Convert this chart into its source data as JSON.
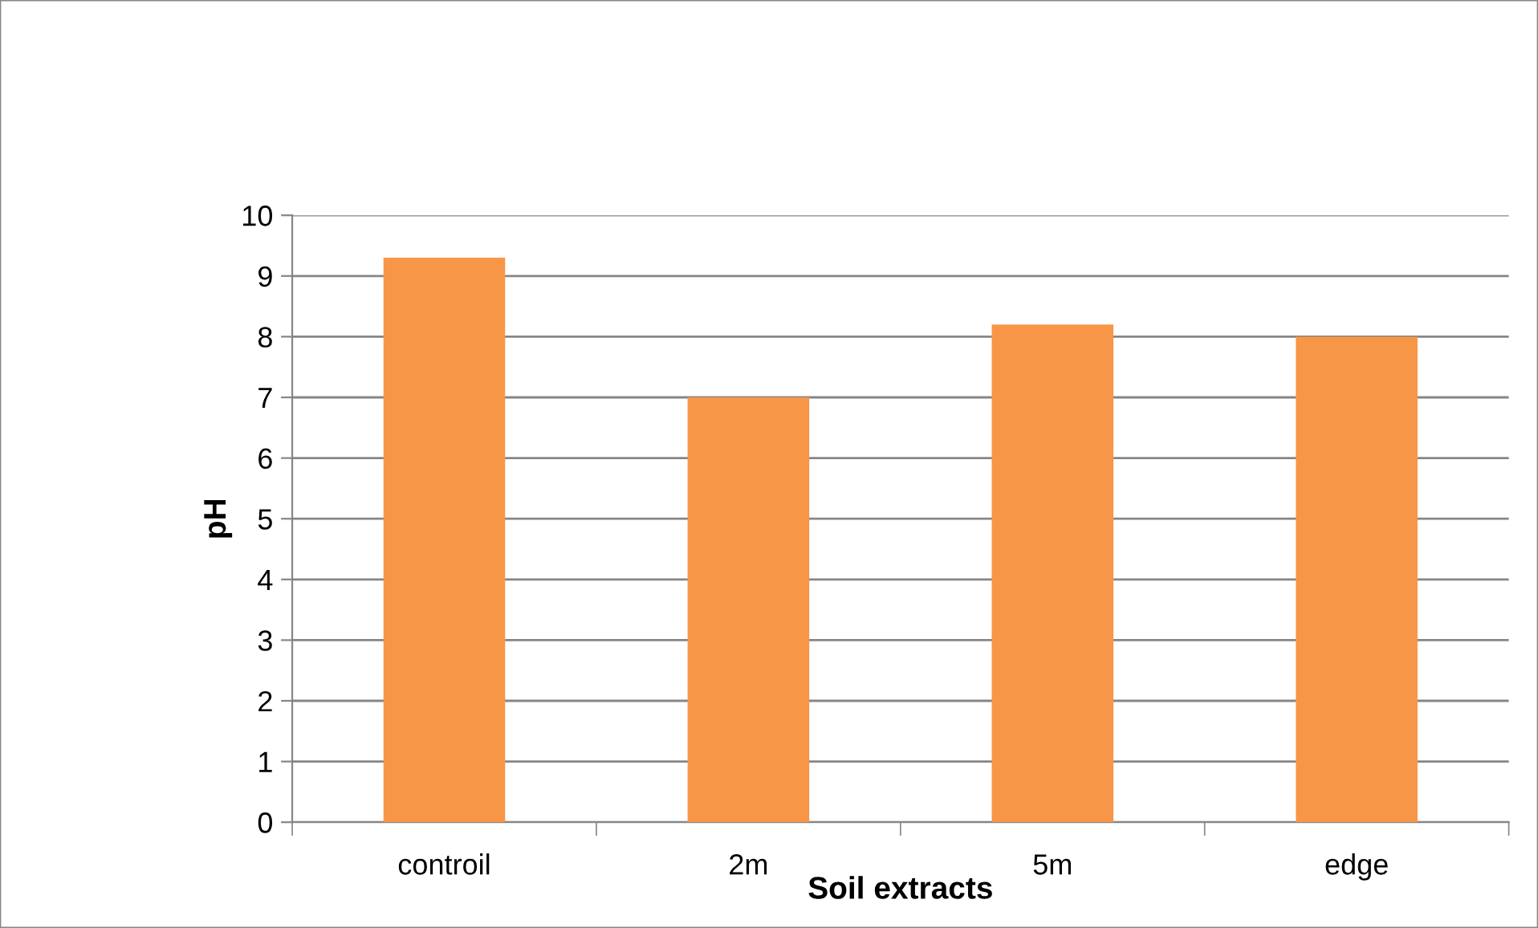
{
  "chart_data": {
    "type": "bar",
    "xlabel": "Soil extracts",
    "ylabel": "pH",
    "categories": [
      "controil",
      "2m",
      "5m",
      "edge"
    ],
    "values": [
      9.3,
      7.0,
      8.2,
      8.0
    ],
    "color": "#f79646",
    "ylim": [
      0,
      10
    ],
    "yticks": [
      0,
      1,
      2,
      3,
      4,
      5,
      6,
      7,
      8,
      9,
      10
    ],
    "grid": "y",
    "legend": false
  }
}
